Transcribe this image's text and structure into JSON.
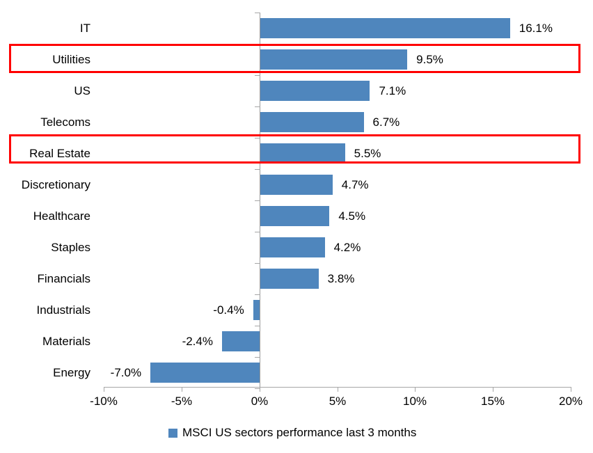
{
  "chart_data": {
    "type": "bar",
    "orientation": "horizontal",
    "categories": [
      "IT",
      "Utilities",
      "US",
      "Telecoms",
      "Real Estate",
      "Discretionary",
      "Healthcare",
      "Staples",
      "Financials",
      "Industrials",
      "Materials",
      "Energy"
    ],
    "values": [
      16.1,
      9.5,
      7.1,
      6.7,
      5.5,
      4.7,
      4.5,
      4.2,
      3.8,
      -0.4,
      -2.4,
      -7.0
    ],
    "value_labels": [
      "16.1%",
      "9.5%",
      "7.1%",
      "6.7%",
      "5.5%",
      "4.7%",
      "4.5%",
      "4.2%",
      "3.8%",
      "-0.4%",
      "-2.4%",
      "-7.0%"
    ],
    "xticks": [
      "-10%",
      "-5%",
      "0%",
      "5%",
      "10%",
      "15%",
      "20%"
    ],
    "xtick_values": [
      -10,
      -5,
      0,
      5,
      10,
      15,
      20
    ],
    "xlim": [
      -10,
      20
    ],
    "grid": false,
    "legend": "MSCI US sectors performance last 3 months",
    "legend_position": "bottom",
    "highlighted_categories": [
      "Utilities",
      "Real Estate"
    ],
    "colors": {
      "bar": "#4f86bd",
      "legend_swatch": "#4f86bd",
      "axis": "#a6a6a6",
      "highlight_border": "#ff0000",
      "text": "#000000"
    }
  }
}
